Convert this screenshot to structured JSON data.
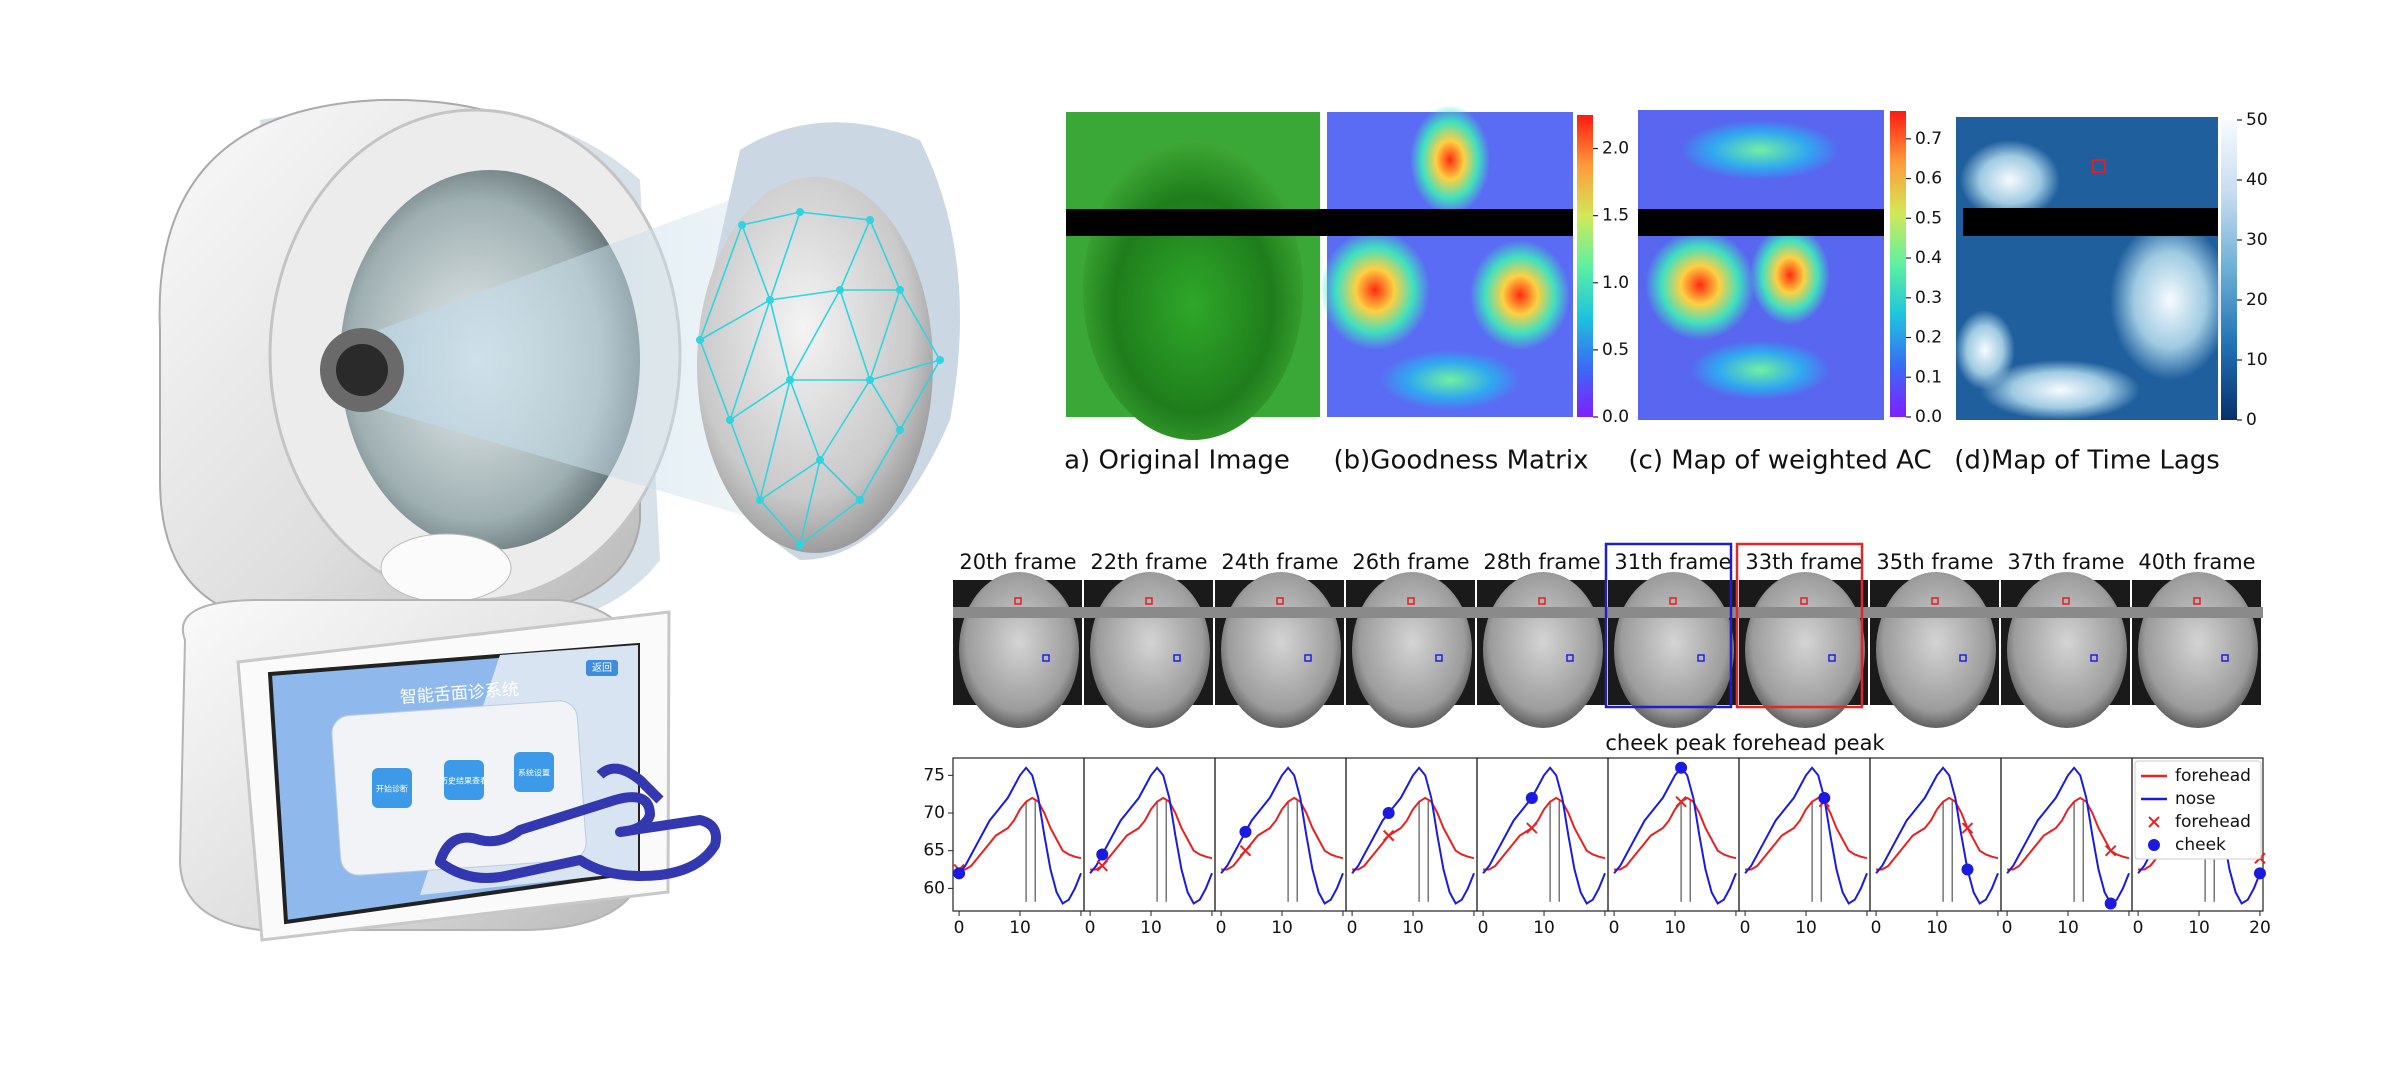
{
  "illustration": {
    "screen_title": "智能舌面诊系统",
    "screen_corner": "返回",
    "buttons": [
      "开始诊断",
      "历史结果查看",
      "系统设置"
    ]
  },
  "maps": [
    {
      "caption": "a) Original Image"
    },
    {
      "caption": "(b)Goodness Matrix",
      "colorbar": {
        "lim": [
          0,
          2.25
        ],
        "ticks": [
          {
            "value": 0,
            "label": "0.0"
          },
          0.5,
          {
            "value": 1,
            "label": "1.0"
          },
          1.5,
          {
            "value": 2,
            "label": "2.0"
          }
        ],
        "colormap": [
          "#7f1fff",
          "#3a6cf4",
          "#1ec4dc",
          "#5ff0a0",
          "#d2e858",
          "#ff9a3a",
          "#ff1a10"
        ]
      }
    },
    {
      "caption": "(c) Map of weighted AC",
      "colorbar": {
        "lim": [
          0,
          0.77
        ],
        "ticks": [
          {
            "value": 0,
            "label": "0.0"
          },
          0.1,
          0.2,
          0.3,
          0.4,
          0.5,
          0.6,
          0.7
        ],
        "colormap": [
          "#7f1fff",
          "#3a6cf4",
          "#1ec4dc",
          "#5ff0a0",
          "#d2e858",
          "#ff9a3a",
          "#ff1a10"
        ]
      }
    },
    {
      "caption": "(d)Map of Time Lags",
      "colorbar": {
        "lim": [
          0,
          50
        ],
        "ticks": [
          0,
          10,
          20,
          30,
          40,
          50
        ],
        "colormap": [
          "#08306b",
          "#2171b5",
          "#6baed6",
          "#c6dbef",
          "#f7fbff"
        ]
      }
    }
  ],
  "frames": {
    "labels": [
      "20th frame",
      "22th frame",
      "24th frame",
      "26th frame",
      "28th frame",
      "31th frame",
      "33th frame",
      "35th frame",
      "37th frame",
      "40th frame"
    ],
    "highlight": [
      {
        "index": 5,
        "color": "#2020c8"
      },
      {
        "index": 6,
        "color": "#e02828"
      }
    ]
  },
  "chart_data": {
    "type": "line",
    "annotation": "cheek peak forehead peak",
    "x": [
      0,
      1,
      2,
      3,
      4,
      5,
      6,
      7,
      8,
      9,
      10,
      11,
      12,
      13,
      14,
      15,
      16,
      17,
      18,
      19,
      20
    ],
    "series": [
      {
        "name": "forehead",
        "color": "#e82020",
        "values": [
          62.5,
          62.5,
          63,
          64,
          65,
          66,
          67,
          67.5,
          68,
          69,
          70.5,
          71.5,
          72,
          71.5,
          70,
          68,
          66.5,
          65,
          64.5,
          64.2,
          64
        ]
      },
      {
        "name": "nose",
        "color": "#1a1ae0",
        "values": [
          62,
          63,
          64.5,
          66,
          67.5,
          69,
          70,
          71,
          72,
          73.5,
          75,
          76,
          75,
          72,
          67,
          62.5,
          59.5,
          58,
          58.5,
          60,
          62
        ]
      }
    ],
    "markers": [
      {
        "name": "forehead",
        "symbol": "x",
        "color": "#e82020",
        "x": [
          0,
          2,
          4,
          6,
          8,
          11,
          13,
          15,
          17,
          20
        ],
        "values": [
          62.5,
          63,
          65,
          67,
          68,
          71.5,
          71.5,
          68,
          65,
          64
        ]
      },
      {
        "name": "cheek",
        "symbol": "circle",
        "color": "#1a1ae0",
        "x": [
          0,
          2,
          4,
          6,
          8,
          11,
          13,
          15,
          17,
          20
        ],
        "values": [
          62,
          64.5,
          67.5,
          70,
          72,
          76,
          72,
          62.5,
          58,
          62
        ]
      }
    ],
    "vlines": [
      11,
      12.5
    ],
    "xlim": [
      -1,
      20.5
    ],
    "ylim": [
      57,
      77.3
    ],
    "xticks": [
      0,
      10,
      20
    ],
    "yticks": [
      60,
      65,
      70,
      75
    ],
    "legend": "upper right"
  }
}
